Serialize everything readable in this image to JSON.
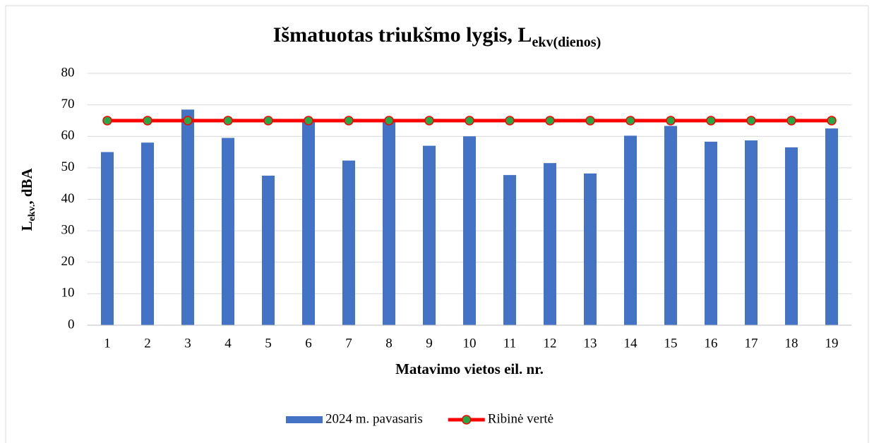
{
  "chart_data": {
    "type": "bar",
    "title": {
      "text": "Išmatuotas triukšmo lygis, L",
      "subscript": "ekv(dienos)"
    },
    "x_label": "Matavimo vietos eil. nr.",
    "y_label": {
      "text": "L",
      "subscript": "ekv.",
      "suffix": ", dBA"
    },
    "categories": [
      "1",
      "2",
      "3",
      "4",
      "5",
      "6",
      "7",
      "8",
      "9",
      "10",
      "11",
      "12",
      "13",
      "14",
      "15",
      "16",
      "17",
      "18",
      "19"
    ],
    "series": [
      {
        "name": "2024 m. pavasaris",
        "type": "bar",
        "color": "#4472c4",
        "values": [
          55,
          58,
          68.5,
          59.5,
          47.5,
          65,
          52.3,
          65,
          57,
          60,
          47.7,
          51.5,
          48.2,
          60.2,
          63.3,
          58.3,
          58.7,
          56.5,
          62.5
        ]
      },
      {
        "name": "Ribinė vertė",
        "type": "line",
        "color": "#ff0000",
        "marker_color": "#28a745",
        "values": [
          65,
          65,
          65,
          65,
          65,
          65,
          65,
          65,
          65,
          65,
          65,
          65,
          65,
          65,
          65,
          65,
          65,
          65,
          65
        ]
      }
    ],
    "ylim": [
      0,
      80
    ],
    "yticks": [
      0,
      10,
      20,
      30,
      40,
      50,
      60,
      70,
      80
    ],
    "grid": true,
    "legend": "bottom"
  }
}
